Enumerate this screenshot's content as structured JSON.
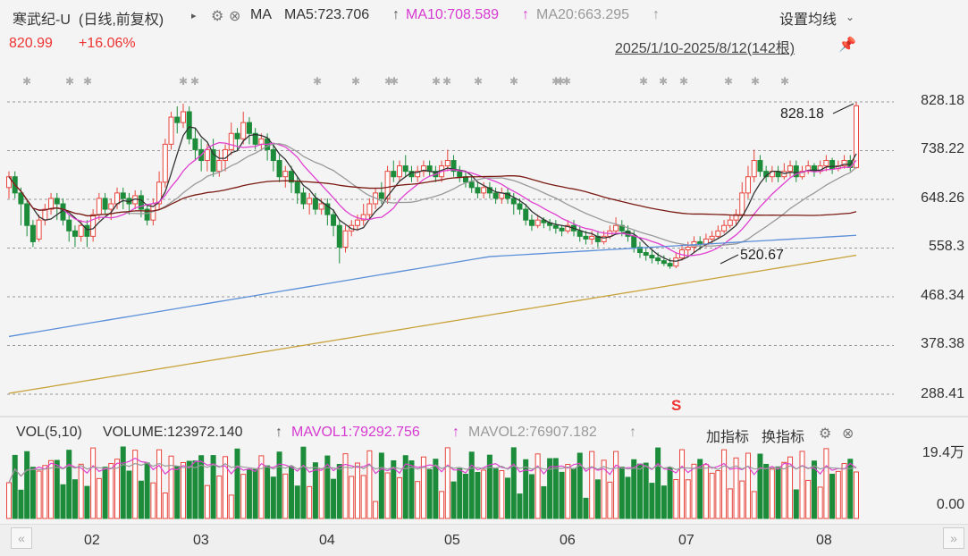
{
  "header": {
    "name": "寒武纪-U",
    "period": "(日线,前复权)",
    "ma_label": "MA",
    "ma5": "MA5:723.706",
    "ma10": "MA10:708.589",
    "ma20": "MA20:663.295",
    "settings": "设置均线",
    "last_price": "820.99",
    "change_pct": "+16.06%",
    "range": "2025/1/10-2025/8/12(142根)"
  },
  "volume_header": {
    "vol": "VOL(5,10)",
    "volume": "VOLUME:123972.140",
    "mavol1": "MAVOL1:79292.756",
    "mavol2": "MAVOL2:76907.182",
    "add_indicator": "加指标",
    "switch_indicator": "换指标"
  },
  "colors": {
    "up": "#e8453c",
    "down": "#1c8c3a",
    "ma5": "#333333",
    "ma10": "#e040d0",
    "ma20": "#999999",
    "ma60": "#7a1a12",
    "ma120": "#5b8fd9",
    "ma250": "#c8a23a",
    "mavol1": "#e040d0",
    "mavol2": "#999999"
  },
  "chart_data": {
    "type": "candlestick",
    "title": "寒武纪-U",
    "x_ticks": [
      "02",
      "03",
      "04",
      "05",
      "06",
      "07",
      "08"
    ],
    "y_ticks": [
      828.18,
      738.22,
      648.26,
      558.3,
      468.34,
      378.38,
      288.41
    ],
    "ylim": [
      288.41,
      828.18
    ],
    "annotations": [
      {
        "label": "828.18",
        "type": "high"
      },
      {
        "label": "520.67",
        "type": "low"
      }
    ],
    "candles_approx": [
      [
        670,
        690,
        700,
        650
      ],
      [
        690,
        660,
        700,
        650
      ],
      [
        660,
        640,
        670,
        600
      ],
      [
        640,
        600,
        650,
        580
      ],
      [
        600,
        570,
        610,
        560
      ],
      [
        575,
        610,
        620,
        570
      ],
      [
        610,
        630,
        640,
        600
      ],
      [
        630,
        650,
        660,
        620
      ],
      [
        650,
        640,
        660,
        610
      ],
      [
        640,
        610,
        650,
        600
      ],
      [
        610,
        590,
        620,
        570
      ],
      [
        590,
        580,
        600,
        560
      ],
      [
        580,
        600,
        610,
        570
      ],
      [
        600,
        580,
        610,
        560
      ],
      [
        580,
        620,
        630,
        570
      ],
      [
        620,
        650,
        660,
        610
      ],
      [
        650,
        630,
        660,
        620
      ],
      [
        630,
        640,
        650,
        610
      ],
      [
        640,
        660,
        670,
        630
      ],
      [
        660,
        650,
        670,
        630
      ],
      [
        650,
        640,
        660,
        620
      ],
      [
        640,
        655,
        665,
        630
      ],
      [
        655,
        630,
        665,
        615
      ],
      [
        630,
        610,
        640,
        600
      ],
      [
        610,
        640,
        650,
        600
      ],
      [
        640,
        680,
        700,
        630
      ],
      [
        680,
        750,
        760,
        670
      ],
      [
        750,
        800,
        810,
        740
      ],
      [
        800,
        790,
        820,
        770
      ],
      [
        790,
        810,
        825,
        780
      ],
      [
        810,
        760,
        820,
        750
      ],
      [
        760,
        740,
        780,
        720
      ],
      [
        740,
        720,
        760,
        700
      ],
      [
        720,
        740,
        750,
        700
      ],
      [
        740,
        700,
        760,
        690
      ],
      [
        700,
        720,
        740,
        690
      ],
      [
        720,
        740,
        750,
        700
      ],
      [
        740,
        770,
        790,
        730
      ],
      [
        770,
        760,
        780,
        740
      ],
      [
        760,
        790,
        810,
        750
      ],
      [
        790,
        770,
        800,
        750
      ],
      [
        770,
        750,
        780,
        740
      ],
      [
        750,
        760,
        770,
        740
      ],
      [
        760,
        740,
        770,
        720
      ],
      [
        740,
        720,
        750,
        700
      ],
      [
        720,
        690,
        730,
        680
      ],
      [
        690,
        700,
        710,
        670
      ],
      [
        700,
        680,
        710,
        660
      ],
      [
        680,
        660,
        690,
        640
      ],
      [
        660,
        640,
        670,
        630
      ],
      [
        640,
        650,
        660,
        620
      ],
      [
        650,
        630,
        660,
        620
      ],
      [
        630,
        640,
        650,
        620
      ],
      [
        640,
        620,
        650,
        600
      ],
      [
        620,
        600,
        630,
        580
      ],
      [
        600,
        560,
        610,
        530
      ],
      [
        560,
        590,
        600,
        550
      ],
      [
        590,
        600,
        610,
        580
      ],
      [
        600,
        610,
        620,
        590
      ],
      [
        610,
        620,
        640,
        600
      ],
      [
        620,
        640,
        650,
        610
      ],
      [
        640,
        660,
        670,
        630
      ],
      [
        660,
        650,
        680,
        640
      ],
      [
        650,
        700,
        710,
        640
      ],
      [
        700,
        690,
        720,
        680
      ],
      [
        690,
        710,
        720,
        680
      ],
      [
        710,
        700,
        730,
        690
      ],
      [
        700,
        690,
        710,
        680
      ],
      [
        690,
        700,
        710,
        680
      ],
      [
        700,
        710,
        720,
        690
      ],
      [
        710,
        700,
        720,
        690
      ],
      [
        700,
        690,
        710,
        680
      ],
      [
        690,
        710,
        720,
        680
      ],
      [
        710,
        720,
        740,
        700
      ],
      [
        720,
        700,
        730,
        690
      ],
      [
        700,
        690,
        710,
        680
      ],
      [
        690,
        680,
        700,
        670
      ],
      [
        680,
        670,
        690,
        660
      ],
      [
        670,
        660,
        680,
        650
      ],
      [
        660,
        670,
        680,
        650
      ],
      [
        670,
        660,
        680,
        650
      ],
      [
        660,
        650,
        670,
        640
      ],
      [
        650,
        660,
        670,
        640
      ],
      [
        660,
        650,
        670,
        640
      ],
      [
        650,
        640,
        660,
        620
      ],
      [
        640,
        630,
        650,
        620
      ],
      [
        630,
        610,
        640,
        600
      ],
      [
        610,
        600,
        620,
        590
      ],
      [
        600,
        610,
        620,
        595
      ],
      [
        610,
        605,
        615,
        595
      ],
      [
        605,
        600,
        612,
        590
      ],
      [
        600,
        595,
        610,
        585
      ],
      [
        595,
        590,
        600,
        580
      ],
      [
        590,
        600,
        610,
        585
      ],
      [
        600,
        590,
        610,
        580
      ],
      [
        590,
        580,
        600,
        570
      ],
      [
        580,
        575,
        590,
        565
      ],
      [
        575,
        580,
        590,
        565
      ],
      [
        580,
        570,
        590,
        560
      ],
      [
        570,
        580,
        590,
        565
      ],
      [
        580,
        590,
        600,
        575
      ],
      [
        590,
        600,
        615,
        585
      ],
      [
        600,
        590,
        610,
        580
      ],
      [
        590,
        580,
        600,
        570
      ],
      [
        580,
        560,
        590,
        550
      ],
      [
        560,
        550,
        570,
        540
      ],
      [
        550,
        545,
        560,
        535
      ],
      [
        545,
        540,
        555,
        530
      ],
      [
        540,
        535,
        550,
        528
      ],
      [
        535,
        530,
        545,
        525
      ],
      [
        530,
        525,
        540,
        520
      ],
      [
        525,
        540,
        550,
        521
      ],
      [
        540,
        555,
        565,
        535
      ],
      [
        555,
        560,
        570,
        545
      ],
      [
        560,
        570,
        580,
        550
      ],
      [
        570,
        565,
        580,
        555
      ],
      [
        565,
        575,
        585,
        560
      ],
      [
        575,
        580,
        590,
        565
      ],
      [
        580,
        590,
        600,
        575
      ],
      [
        590,
        600,
        610,
        585
      ],
      [
        600,
        610,
        620,
        595
      ],
      [
        610,
        620,
        630,
        600
      ],
      [
        620,
        660,
        680,
        615
      ],
      [
        660,
        690,
        710,
        650
      ],
      [
        690,
        720,
        740,
        680
      ],
      [
        720,
        700,
        730,
        690
      ],
      [
        700,
        690,
        710,
        680
      ],
      [
        690,
        700,
        710,
        680
      ],
      [
        700,
        690,
        710,
        680
      ],
      [
        690,
        700,
        715,
        685
      ],
      [
        700,
        710,
        720,
        690
      ],
      [
        710,
        690,
        720,
        680
      ],
      [
        690,
        700,
        710,
        685
      ],
      [
        700,
        710,
        720,
        695
      ],
      [
        710,
        700,
        715,
        690
      ],
      [
        700,
        710,
        720,
        695
      ],
      [
        710,
        720,
        730,
        700
      ],
      [
        720,
        705,
        725,
        695
      ],
      [
        705,
        710,
        720,
        700
      ],
      [
        710,
        720,
        730,
        705
      ],
      [
        720,
        707,
        730,
        700
      ],
      [
        707,
        821,
        828,
        705
      ]
    ]
  }
}
